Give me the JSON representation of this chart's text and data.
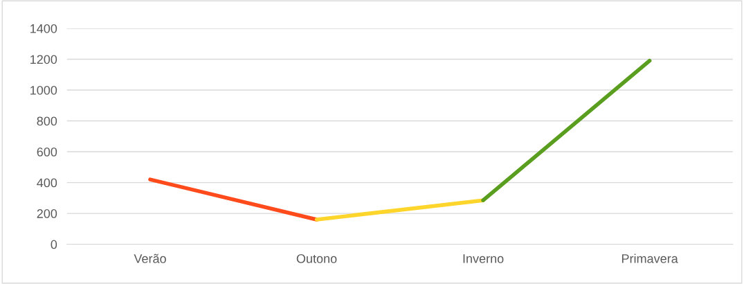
{
  "chart_data": {
    "type": "line",
    "categories": [
      "Verão",
      "Outono",
      "Inverno",
      "Primavera"
    ],
    "series": [
      {
        "color": "#ff4a1c",
        "values": [
          420,
          160,
          null,
          null
        ]
      },
      {
        "color": "#fdd52b",
        "values": [
          null,
          160,
          285,
          null
        ]
      },
      {
        "color": "#5a9e1f",
        "values": [
          null,
          null,
          285,
          1190
        ]
      }
    ],
    "ylim": [
      0,
      1400
    ],
    "yticks": [
      0,
      200,
      400,
      600,
      800,
      1000,
      1200,
      1400
    ],
    "grid": "y",
    "line_style": "solid",
    "marker": "none"
  }
}
